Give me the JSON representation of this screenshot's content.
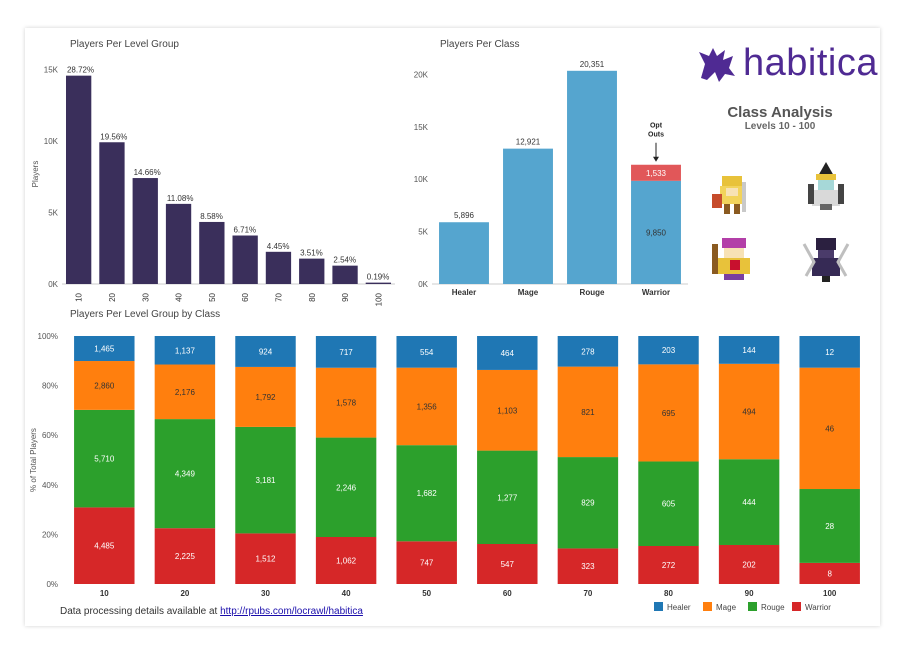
{
  "brand": {
    "name": "habitica"
  },
  "class_analysis": {
    "title": "Class Analysis",
    "subtitle": "Levels 10 - 100"
  },
  "avatars": [
    "warrior-avatar",
    "mage-avatar",
    "healer-avatar",
    "rogue-avatar"
  ],
  "footer": {
    "prefix": "Data processing details available at ",
    "link": "http://rpubs.com/locrawl/habitica"
  },
  "colors": {
    "navy": "#3a2f5b",
    "blue": "#55a5cf",
    "red": "#e15759",
    "healer": "#1f77b4",
    "mage": "#ff7f0e",
    "rouge": "#2ca02c",
    "warrior": "#d62728"
  },
  "chart_data": [
    {
      "type": "bar",
      "title": "Players Per Level Group",
      "ylabel": "Players",
      "ylim": [
        0,
        15000
      ],
      "yticks": [
        0,
        5000,
        10000,
        15000
      ],
      "ytick_labels": [
        "0K",
        "5K",
        "10K",
        "15K"
      ],
      "categories": [
        "10",
        "20",
        "30",
        "40",
        "50",
        "60",
        "70",
        "80",
        "90",
        "100"
      ],
      "values": [
        14570,
        9912,
        7409,
        5603,
        4339,
        3391,
        2251,
        1775,
        1284,
        96
      ],
      "data_labels": [
        "28.72%",
        "19.56%",
        "14.66%",
        "11.08%",
        "8.58%",
        "6.71%",
        "4.45%",
        "3.51%",
        "2.54%",
        "0.19%"
      ]
    },
    {
      "type": "bar",
      "title": "Players Per Class",
      "ylim": [
        0,
        21000
      ],
      "yticks": [
        0,
        5000,
        10000,
        15000,
        20000
      ],
      "ytick_labels": [
        "0K",
        "5K",
        "10K",
        "15K",
        "20K"
      ],
      "categories": [
        "Healer",
        "Mage",
        "Rouge",
        "Warrior"
      ],
      "values": [
        5896,
        12921,
        20351,
        9850
      ],
      "data_labels": [
        "5,896",
        "12,921",
        "20,351",
        "9,850"
      ],
      "stacked_extra": {
        "category": "Warrior",
        "value": 1533,
        "label": "1,533"
      },
      "annotation": {
        "category": "Warrior",
        "line1": "Opt",
        "line2": "Outs"
      }
    },
    {
      "type": "bar",
      "stacked": true,
      "normalized": true,
      "title": "Players Per Level Group by Class",
      "ylabel": "% of Total Players",
      "yticks": [
        0,
        20,
        40,
        60,
        80,
        100
      ],
      "ytick_labels": [
        "0%",
        "20%",
        "40%",
        "60%",
        "80%",
        "100%"
      ],
      "categories": [
        "10",
        "20",
        "30",
        "40",
        "50",
        "60",
        "70",
        "80",
        "90",
        "100"
      ],
      "series": [
        {
          "name": "Warrior",
          "values": [
            4485,
            2225,
            1512,
            1062,
            747,
            547,
            323,
            272,
            202,
            8
          ],
          "labels": [
            "4,485",
            "2,225",
            "1,512",
            "1,062",
            "747",
            "547",
            "323",
            "272",
            "202",
            "8"
          ]
        },
        {
          "name": "Rouge",
          "values": [
            5710,
            4349,
            3181,
            2246,
            1682,
            1277,
            829,
            605,
            444,
            28
          ],
          "labels": [
            "5,710",
            "4,349",
            "3,181",
            "2,246",
            "1,682",
            "1,277",
            "829",
            "605",
            "444",
            "28"
          ]
        },
        {
          "name": "Mage",
          "values": [
            2860,
            2176,
            1792,
            1578,
            1356,
            1103,
            821,
            695,
            494,
            46
          ],
          "labels": [
            "2,860",
            "2,176",
            "1,792",
            "1,578",
            "1,356",
            "1,103",
            "821",
            "695",
            "494",
            "46"
          ]
        },
        {
          "name": "Healer",
          "values": [
            1465,
            1137,
            924,
            717,
            554,
            464,
            278,
            203,
            144,
            12
          ],
          "labels": [
            "1,465",
            "1,137",
            "924",
            "717",
            "554",
            "464",
            "278",
            "203",
            "144",
            "12"
          ]
        }
      ],
      "legend": [
        "Healer",
        "Mage",
        "Rouge",
        "Warrior"
      ],
      "legend_position": "bottom-right"
    }
  ]
}
